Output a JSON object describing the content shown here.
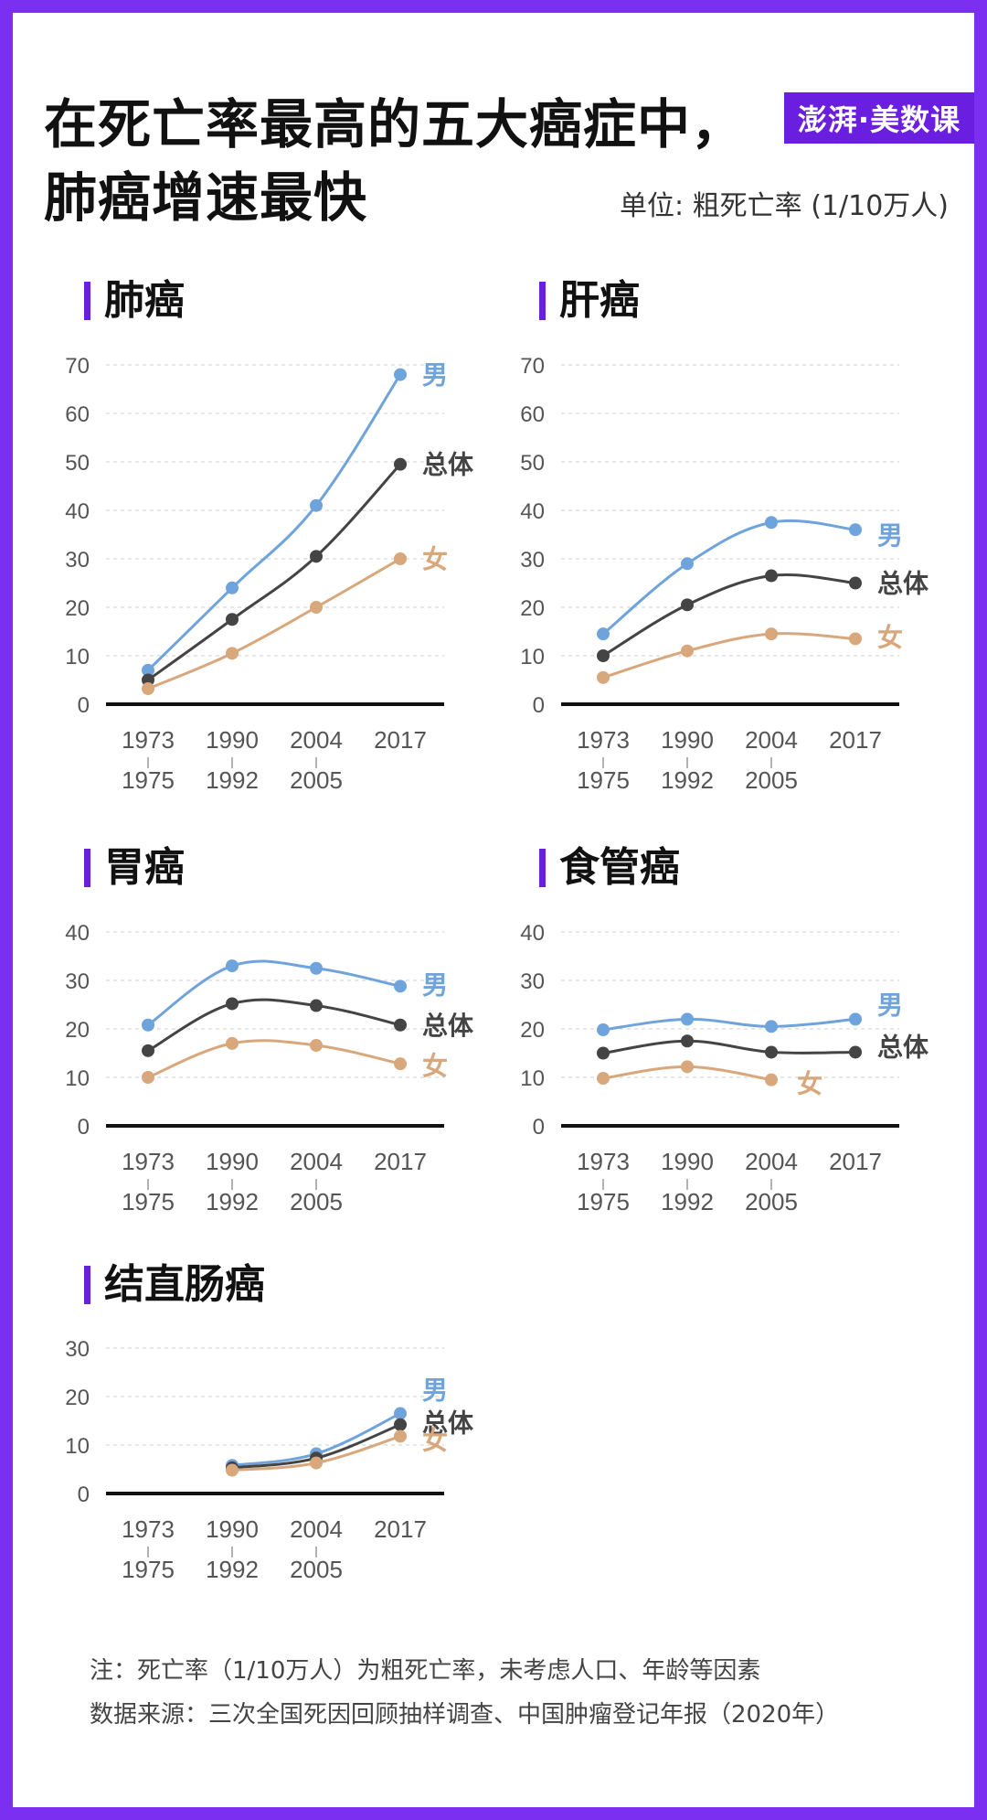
{
  "title_lines": [
    "在死亡率最高的五大癌症中，",
    "肺癌增速最快"
  ],
  "brand": "澎湃·美数课",
  "unit": "单位: 粗死亡率 (1/10万人)",
  "notes": [
    "注：死亡率（1/10万人）为粗死亡率，未考虑人口、年龄等因素",
    "数据来源：三次全国死因回顾抽样调查、中国肿瘤登记年报（2020年）"
  ],
  "colors": {
    "male": "#6fa3dc",
    "overall": "#444444",
    "female": "#d9a77c",
    "accent": "#6a1fe0"
  },
  "chart_data": [
    {
      "type": "line",
      "title": "肺癌",
      "categories": [
        [
          "1973",
          "1975"
        ],
        [
          "1990",
          "1992"
        ],
        [
          "2004",
          "2005"
        ],
        [
          "2017"
        ]
      ],
      "ylim": [
        0,
        70
      ],
      "yticks": [
        0,
        10,
        20,
        30,
        40,
        50,
        60,
        70
      ],
      "series": [
        {
          "name": "男",
          "key": "male",
          "values": [
            7,
            24,
            41,
            68
          ]
        },
        {
          "name": "总体",
          "key": "overall",
          "values": [
            5,
            17.5,
            30.5,
            49.5
          ]
        },
        {
          "name": "女",
          "key": "female",
          "values": [
            3.2,
            10.5,
            20,
            30
          ]
        }
      ]
    },
    {
      "type": "line",
      "title": "肝癌",
      "categories": [
        [
          "1973",
          "1975"
        ],
        [
          "1990",
          "1992"
        ],
        [
          "2004",
          "2005"
        ],
        [
          "2017"
        ]
      ],
      "ylim": [
        0,
        70
      ],
      "yticks": [
        0,
        10,
        20,
        30,
        40,
        50,
        60,
        70
      ],
      "series": [
        {
          "name": "男",
          "key": "male",
          "values": [
            14.5,
            29,
            37.5,
            36
          ]
        },
        {
          "name": "总体",
          "key": "overall",
          "values": [
            10,
            20.5,
            26.5,
            25
          ]
        },
        {
          "name": "女",
          "key": "female",
          "values": [
            5.5,
            11,
            14.5,
            13.5
          ]
        }
      ]
    },
    {
      "type": "line",
      "title": "胃癌",
      "categories": [
        [
          "1973",
          "1975"
        ],
        [
          "1990",
          "1992"
        ],
        [
          "2004",
          "2005"
        ],
        [
          "2017"
        ]
      ],
      "ylim": [
        0,
        40
      ],
      "yticks": [
        0,
        10,
        20,
        30,
        40
      ],
      "series": [
        {
          "name": "男",
          "key": "male",
          "values": [
            20.8,
            33,
            32.5,
            28.8
          ]
        },
        {
          "name": "总体",
          "key": "overall",
          "values": [
            15.5,
            25.2,
            24.8,
            20.8
          ]
        },
        {
          "name": "女",
          "key": "female",
          "values": [
            10,
            17,
            16.6,
            12.8
          ]
        }
      ]
    },
    {
      "type": "line",
      "title": "食管癌",
      "categories": [
        [
          "1973",
          "1975"
        ],
        [
          "1990",
          "1992"
        ],
        [
          "2004",
          "2005"
        ],
        [
          "2017"
        ]
      ],
      "ylim": [
        0,
        40
      ],
      "yticks": [
        0,
        10,
        20,
        30,
        40
      ],
      "series": [
        {
          "name": "男",
          "key": "male",
          "values": [
            19.8,
            22,
            20.5,
            22
          ]
        },
        {
          "name": "总体",
          "key": "overall",
          "values": [
            15,
            17.5,
            15.2,
            15.2
          ]
        },
        {
          "name": "女",
          "key": "female",
          "values": [
            9.8,
            12.2,
            9.5,
            null
          ]
        }
      ]
    },
    {
      "type": "line",
      "title": "结直肠癌",
      "categories": [
        [
          "1973",
          "1975"
        ],
        [
          "1990",
          "1992"
        ],
        [
          "2004",
          "2005"
        ],
        [
          "2017"
        ]
      ],
      "ylim": [
        0,
        30
      ],
      "yticks": [
        0,
        10,
        20,
        30
      ],
      "series": [
        {
          "name": "男",
          "key": "male",
          "values": [
            null,
            5.8,
            8.2,
            16.5
          ]
        },
        {
          "name": "总体",
          "key": "overall",
          "values": [
            null,
            5.3,
            7.3,
            14.2
          ]
        },
        {
          "name": "女",
          "key": "female",
          "values": [
            null,
            4.8,
            6.3,
            11.8
          ]
        }
      ]
    }
  ]
}
